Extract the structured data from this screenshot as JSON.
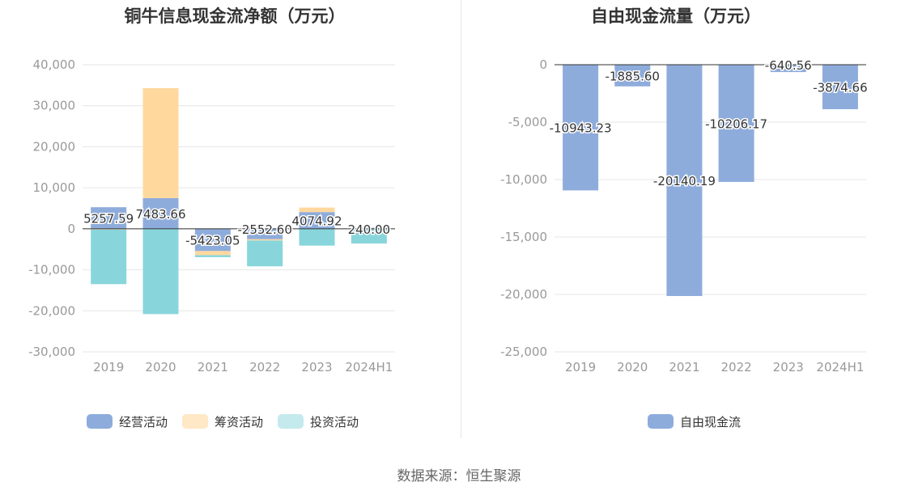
{
  "source_text": "数据来源：恒生聚源",
  "chart_data": [
    {
      "type": "bar",
      "title": "铜牛信息现金流净额（万元）",
      "categories": [
        "2019",
        "2020",
        "2021",
        "2022",
        "2023",
        "2024H1"
      ],
      "ylim": [
        -30000,
        40000
      ],
      "yticks": [
        40000,
        30000,
        20000,
        10000,
        0,
        -10000,
        -20000,
        -30000
      ],
      "ytick_labels": [
        "40,000",
        "30,000",
        "20,000",
        "10,000",
        "0",
        "-10,000",
        "-20,000",
        "-30,000"
      ],
      "grid": true,
      "legend_position": "bottom",
      "series": [
        {
          "name": "经营活动",
          "color": "#8eacdb",
          "values": [
            5257.59,
            7483.66,
            -5423.05,
            -2552.6,
            4074.92,
            240.0
          ]
        },
        {
          "name": "筹资活动",
          "color": "#ffd89e",
          "values": [
            -200,
            26800,
            -1000,
            -300,
            1100,
            -100
          ]
        },
        {
          "name": "投资活动",
          "color": "#88d6db",
          "values": [
            -13300,
            -20800,
            -500,
            -6300,
            -4100,
            -3500
          ]
        }
      ],
      "data_labels": [
        "5257.59",
        "7483.66",
        "-5423.05",
        "-2552.60",
        "4074.92",
        "240.00"
      ]
    },
    {
      "type": "bar",
      "title": "自由现金流量（万元）",
      "categories": [
        "2019",
        "2020",
        "2021",
        "2022",
        "2023",
        "2024H1"
      ],
      "ylim": [
        -25000,
        0
      ],
      "yticks": [
        0,
        -5000,
        -10000,
        -15000,
        -20000,
        -25000
      ],
      "ytick_labels": [
        "0",
        "-5,000",
        "-10,000",
        "-15,000",
        "-20,000",
        "-25,000"
      ],
      "grid": true,
      "legend_position": "bottom",
      "series": [
        {
          "name": "自由现金流",
          "color": "#8eacdb",
          "values": [
            -10943.23,
            -1885.6,
            -20140.19,
            -10206.17,
            -640.56,
            -3874.66
          ]
        }
      ],
      "data_labels": [
        "-10943.23",
        "-1885.60",
        "-20140.19",
        "-10206.17",
        "-640.56",
        "-3874.66"
      ]
    }
  ]
}
